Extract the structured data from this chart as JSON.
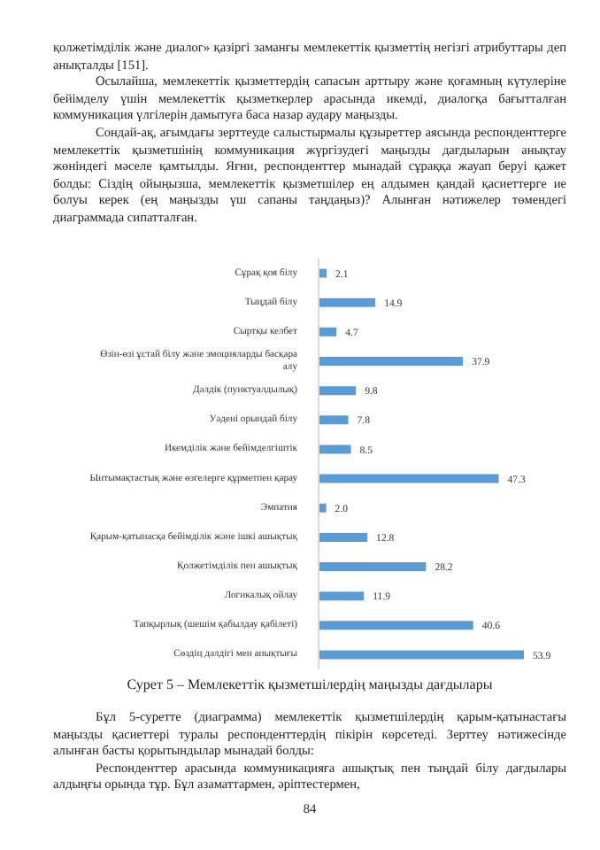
{
  "chart_data": {
    "type": "bar",
    "orientation": "horizontal",
    "title": "Сурет 5 – Мемлекеттік қызметшілердің маңызды дағдылары",
    "categories": [
      "Сұрақ қоя білу",
      "Тыңдай білу",
      "Сыртқы келбет",
      "Өзін-өзі ұстай білу және эмоцияларды басқара алу",
      "Дәлдік (пунктуалдылық)",
      "Уәдені орындай білу",
      "Икемділік және бейімделгіштік",
      "Ынтымақтастық және өзгелерге құрметпен қарау",
      "Эмпатия",
      "Қарым-қатынасқа бейімділік және ішкі ашықтық",
      "Қолжетімділік пен ашықтық",
      "Логикалық ойлау",
      "Тапқырлық (шешім қабылдау қабілеті)",
      "Сөздің дәлдігі мен анықтығы"
    ],
    "values": [
      2.1,
      14.9,
      4.7,
      37.9,
      9.8,
      7.8,
      8.5,
      47.3,
      2.0,
      12.8,
      28.2,
      11.9,
      40.6,
      53.9
    ],
    "value_labels": [
      "2.1",
      "14.9",
      "4.7",
      "37.9",
      "9.8",
      "7.8",
      "8.5",
      "47.3",
      "2.0",
      "12.8",
      "28.2",
      "11.9",
      "40.6",
      "53.9"
    ],
    "color": "#5b9bd5",
    "tick_labels": "y",
    "annotations": [
      "қолжетімділік және диалог» қазіргі заманғы мемлекеттік қызметтің негізгі атрибуттары деп анықталды [151].",
      "Осылайша, мемлекеттік қызметтердің сапасын арттыру және қоғамның күтулеріне бейімделу үшін мемлекеттік қызметкерлер арасында икемді, диалогқа бағытталған коммуникация үлгілерін дамытуға баса назар аудару маңызды.",
      "Сондай-ақ, ағымдағы зерттеуде салыстырмалы құзыреттер аясында респонденттерге мемлекеттік қызметшінің коммуникация жүргізудегі маңызды дағдыларын анықтау жөніндегі мәселе қамтылды. Яғни, респонденттер мынадай сұраққа жауап беруі қажет болды: Сіздің ойыңызша, мемлекеттік қызметшілер ең алдымен қандай қасиеттерге ие болуы керек (ең маңызды үш сапаны таңдаңыз)? Алынған нәтижелер төмендегі диаграммада сипатталған.",
      "Бұл 5-суретте (диаграмма) мемлекеттік қызметшілердің қарым-қатынастағы маңызды қасиеттері туралы респонденттердің пікірін көрсетеді. Зерттеу нәтижесінде алынған басты қорытындылар мынадай болды:",
      "Респонденттер арасында коммуникацияға ашықтық пен тыңдай білу дағдылары алдыңғы орында тұр. Бұл азаматтармен, әріптестермен,",
      "84"
    ]
  }
}
